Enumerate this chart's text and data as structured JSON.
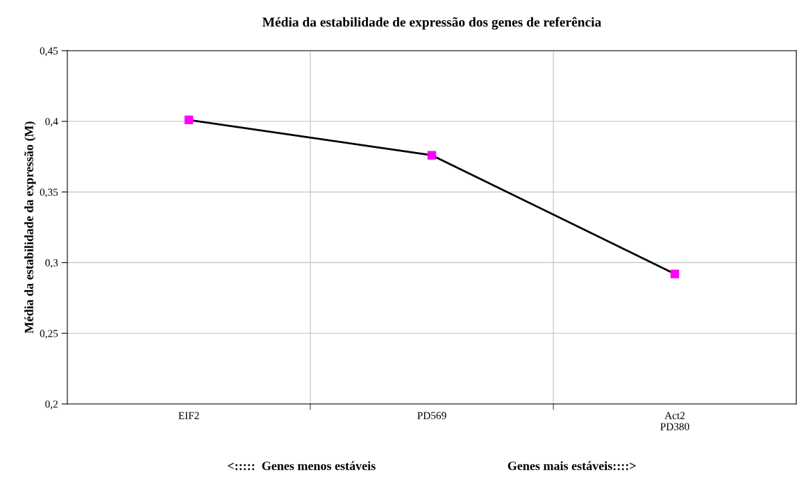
{
  "chart_data": {
    "type": "line",
    "title": "Média da estabilidade de expressão dos genes de referência",
    "xlabel": "<:::::  Genes menos estáveis                                          Genes mais estáveis::::>",
    "ylabel": "Média da estabilidade da expressão (M)",
    "categories": [
      "EIF2",
      "PD569",
      "Act2\nPD380"
    ],
    "series": [
      {
        "color": "#000000",
        "colors": [
          "#ff00ff",
          "#ff00ff",
          "#ff00ff"
        ],
        "values": [
          0.401,
          0.376,
          0.292
        ]
      }
    ],
    "ylim": [
      0.2,
      0.45
    ],
    "yticks": [
      {
        "value": 0.2,
        "label": "0,2"
      },
      {
        "value": 0.25,
        "label": "0,25"
      },
      {
        "value": 0.3,
        "label": "0,3"
      },
      {
        "value": 0.35,
        "label": "0,35"
      },
      {
        "value": 0.4,
        "label": "0,4"
      },
      {
        "value": 0.45,
        "label": "0,45"
      }
    ],
    "grid": true,
    "marker": "square",
    "line_style": "solid"
  }
}
